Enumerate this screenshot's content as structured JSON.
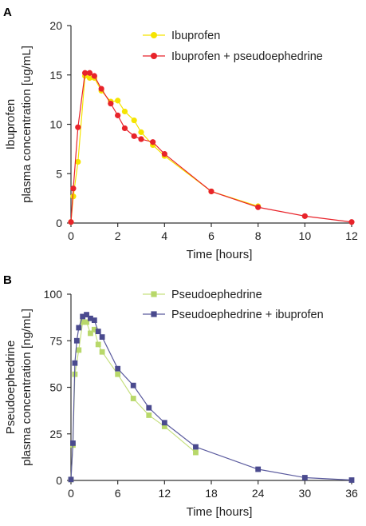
{
  "chart_data": [
    {
      "type": "line",
      "panel_label": "A",
      "xlabel": "Time [hours]",
      "ylabel_lines": [
        "Ibuprofen",
        "plasma concentration [ug/mL]"
      ],
      "xlim": [
        0,
        12
      ],
      "ylim": [
        0,
        20
      ],
      "xticks": [
        0,
        2,
        4,
        6,
        8,
        10,
        12
      ],
      "yticks": [
        0,
        5,
        10,
        15,
        20
      ],
      "grid": false,
      "legend_position": "top-right",
      "marker": "circle",
      "series": [
        {
          "name": "Ibuprofen",
          "color": "#f5e400",
          "line_color": "#f5e400",
          "x": [
            0,
            0.1,
            0.3,
            0.6,
            0.8,
            1.0,
            1.3,
            1.7,
            2.0,
            2.3,
            2.7,
            3.0,
            3.5,
            4.0,
            6.0,
            8.0
          ],
          "y": [
            0.1,
            2.7,
            6.2,
            14.9,
            14.7,
            14.7,
            13.4,
            12.3,
            12.4,
            11.3,
            10.4,
            9.2,
            7.9,
            6.8,
            3.2,
            1.7
          ]
        },
        {
          "name": "Ibuprofen + pseudoephedrine",
          "color": "#e8232a",
          "line_color": "#e8232a",
          "x": [
            0,
            0.1,
            0.3,
            0.6,
            0.8,
            1.0,
            1.3,
            1.7,
            2.0,
            2.3,
            2.7,
            3.0,
            3.5,
            4.0,
            6.0,
            8.0,
            10.0,
            12.0
          ],
          "y": [
            0.1,
            3.5,
            9.7,
            15.2,
            15.2,
            14.9,
            13.6,
            12.1,
            10.9,
            9.6,
            8.8,
            8.5,
            8.2,
            7.0,
            3.2,
            1.6,
            0.7,
            0.1
          ]
        }
      ]
    },
    {
      "type": "line",
      "panel_label": "B",
      "xlabel": "Time [hours]",
      "ylabel_lines": [
        "Pseudoephedrine",
        "plasma concentration [ng/mL]"
      ],
      "xlim": [
        0,
        36
      ],
      "ylim": [
        0,
        100
      ],
      "xticks": [
        0,
        6,
        12,
        18,
        24,
        30,
        36
      ],
      "yticks": [
        0,
        25,
        50,
        75,
        100
      ],
      "grid": false,
      "legend_position": "top-right",
      "marker": "square",
      "series": [
        {
          "name": "Pseudoephedrine",
          "color": "#b8d86a",
          "line_color": "#c6e07f",
          "x": [
            0,
            0.25,
            0.5,
            1.0,
            1.5,
            2.0,
            2.5,
            3.0,
            3.5,
            4.0,
            6.0,
            8.0,
            10.0,
            12.0,
            16.0
          ],
          "y": [
            0.5,
            19,
            57,
            70,
            85,
            85,
            79,
            81,
            73,
            69,
            57,
            44,
            35,
            29,
            15
          ]
        },
        {
          "name": "Pseudoephedrine + ibuprofen",
          "color": "#4a4a8e",
          "line_color": "#5a5a9e",
          "x": [
            0,
            0.25,
            0.5,
            0.75,
            1.0,
            1.5,
            2.0,
            2.5,
            3.0,
            3.5,
            4.0,
            6.0,
            8.0,
            10.0,
            12.0,
            16.0,
            24.0,
            30.0,
            36.0
          ],
          "y": [
            0.5,
            20,
            63,
            75,
            82,
            88,
            89,
            87,
            86,
            80,
            77,
            60,
            51,
            39,
            31,
            18,
            6,
            1.5,
            0.2
          ]
        }
      ]
    }
  ]
}
